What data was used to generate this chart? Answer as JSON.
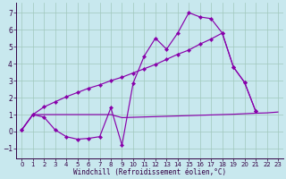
{
  "xlabel": "Windchill (Refroidissement éolien,°C)",
  "bg_color": "#c8e8ee",
  "grid_color": "#a0c8bc",
  "line_color": "#8800aa",
  "xlim": [
    -0.5,
    23.5
  ],
  "ylim": [
    -1.6,
    7.6
  ],
  "xticks": [
    0,
    1,
    2,
    3,
    4,
    5,
    6,
    7,
    8,
    9,
    10,
    11,
    12,
    13,
    14,
    15,
    16,
    17,
    18,
    19,
    20,
    21,
    22,
    23
  ],
  "yticks": [
    -1,
    0,
    1,
    2,
    3,
    4,
    5,
    6,
    7
  ],
  "line1_x": [
    0,
    1,
    2,
    3,
    4,
    5,
    6,
    7,
    8,
    9,
    10,
    11,
    12,
    13,
    14,
    15,
    16,
    17,
    18,
    19,
    20,
    21
  ],
  "line1_y": [
    0.1,
    1.0,
    0.85,
    0.1,
    -0.3,
    -0.45,
    -0.4,
    -0.3,
    1.4,
    -0.8,
    2.85,
    4.45,
    5.5,
    4.85,
    5.8,
    7.0,
    6.75,
    6.65,
    5.8,
    3.8,
    2.9,
    1.2
  ],
  "line2_x": [
    0,
    1,
    2,
    3,
    4,
    5,
    6,
    7,
    8,
    9,
    10,
    11,
    12,
    13,
    14,
    15,
    16,
    17,
    18,
    19,
    20,
    21
  ],
  "line2_y": [
    0.1,
    1.0,
    1.45,
    1.75,
    2.05,
    2.3,
    2.55,
    2.75,
    3.0,
    3.2,
    3.45,
    3.7,
    3.95,
    4.25,
    4.55,
    4.8,
    5.15,
    5.45,
    5.8,
    3.8,
    2.9,
    1.2
  ],
  "line3_x": [
    0,
    1,
    2,
    3,
    4,
    5,
    6,
    7,
    8,
    9,
    10,
    11,
    12,
    13,
    14,
    15,
    16,
    17,
    18,
    19,
    20,
    21,
    22,
    23
  ],
  "line3_y": [
    0.1,
    1.0,
    1.0,
    1.0,
    1.0,
    1.0,
    1.0,
    1.0,
    1.0,
    0.82,
    0.84,
    0.86,
    0.88,
    0.9,
    0.92,
    0.94,
    0.96,
    0.98,
    1.0,
    1.02,
    1.05,
    1.08,
    1.1,
    1.15
  ],
  "xlabel_fontsize": 5.5,
  "tick_fontsize": 5.0
}
